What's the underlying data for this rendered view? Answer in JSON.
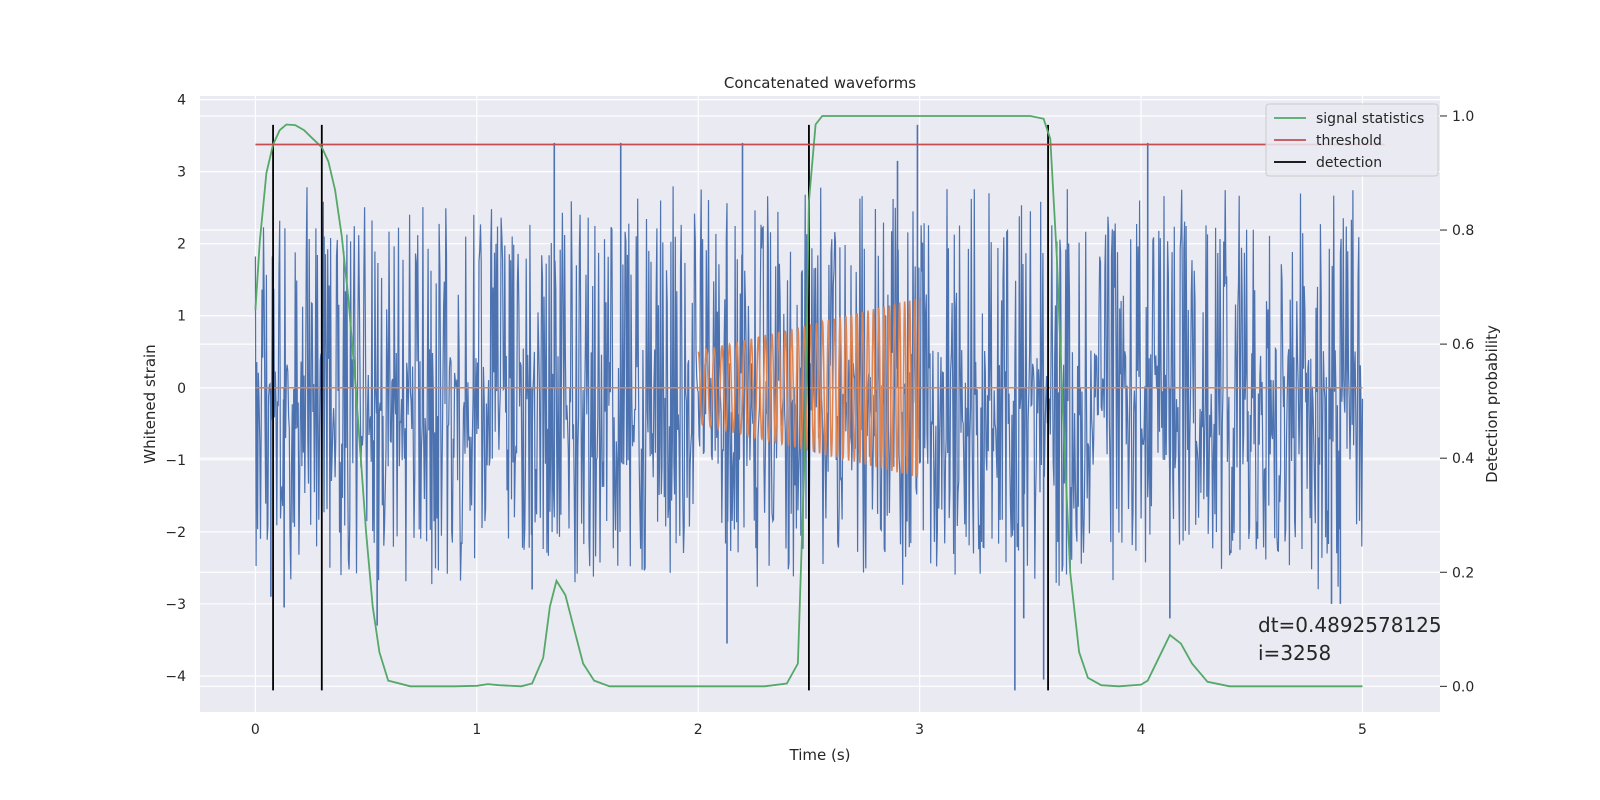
{
  "chart_data": {
    "type": "line",
    "title": "Concatenated waveforms",
    "xlabel": "Time (s)",
    "ylabel_left": "Whitened strain",
    "ylabel_right": "Detection probability",
    "xlim": [
      -0.25,
      5.35
    ],
    "ylim_left": [
      -4.5,
      4.05
    ],
    "ylim_right": [
      -0.045,
      1.035
    ],
    "x_ticks": [
      0,
      1,
      2,
      3,
      4,
      5
    ],
    "x_tick_labels": [
      "0",
      "1",
      "2",
      "3",
      "4",
      "5"
    ],
    "y_left_ticks": [
      4,
      3,
      2,
      1,
      0,
      -1,
      -2,
      -3,
      -4
    ],
    "y_left_tick_labels": [
      "4",
      "3",
      "2",
      "1",
      "0",
      "−1",
      "−2",
      "−3",
      "−4"
    ],
    "y_right_ticks": [
      1.0,
      0.8,
      0.6,
      0.4,
      0.2,
      0.0
    ],
    "y_right_tick_labels": [
      "1.0",
      "0.8",
      "0.6",
      "0.4",
      "0.2",
      "0.0"
    ],
    "grid": true,
    "legend_position": "top-right",
    "legend": [
      {
        "label": "signal statistics",
        "color": "#55a868"
      },
      {
        "label": "threshold",
        "color": "#c44e52"
      },
      {
        "label": "detection",
        "color": "#000000"
      }
    ],
    "annotation": [
      "dt=0.4892578125",
      " i=3258"
    ],
    "series": [
      {
        "kind": "noise",
        "axis": "left",
        "color": "#4c72b0",
        "x_range": [
          0,
          5
        ],
        "typical_range": [
          -1.1,
          0.55
        ],
        "peak_range": [
          -4.2,
          3.65
        ],
        "spikes": [
          {
            "x": 0.07,
            "y": -2.9
          },
          {
            "x": 0.13,
            "y": -3.05
          },
          {
            "x": 0.31,
            "y": 2.1
          },
          {
            "x": 0.55,
            "y": -3.3
          },
          {
            "x": 1.35,
            "y": 3.4
          },
          {
            "x": 1.25,
            "y": -2.8
          },
          {
            "x": 1.65,
            "y": 3.4
          },
          {
            "x": 2.2,
            "y": 3.4
          },
          {
            "x": 2.5,
            "y": 3.4
          },
          {
            "x": 2.13,
            "y": -3.55
          },
          {
            "x": 2.9,
            "y": 3.15
          },
          {
            "x": 2.99,
            "y": 3.65
          },
          {
            "x": 3.43,
            "y": -4.2
          },
          {
            "x": 3.56,
            "y": -4.05
          },
          {
            "x": 3.47,
            "y": -3.2
          },
          {
            "x": 4.03,
            "y": 3.4
          },
          {
            "x": 4.13,
            "y": -3.2
          },
          {
            "x": 4.86,
            "y": -3.0
          },
          {
            "x": 4.9,
            "y": -3.0
          }
        ]
      },
      {
        "kind": "chirp",
        "axis": "left",
        "color": "#dd8452",
        "x": [
          2.0,
          3.0
        ],
        "amplitude_start": 0.5,
        "amplitude_end": 1.25,
        "cycles": 36,
        "baseline": 0
      },
      {
        "name": "signal statistics",
        "axis": "right",
        "color": "#55a868",
        "x": [
          0,
          0.02,
          0.05,
          0.08,
          0.11,
          0.14,
          0.18,
          0.22,
          0.26,
          0.3,
          0.33,
          0.36,
          0.39,
          0.42,
          0.45,
          0.48,
          0.5,
          0.53,
          0.56,
          0.6,
          0.7,
          0.9,
          1.0,
          1.05,
          1.1,
          1.2,
          1.25,
          1.3,
          1.33,
          1.36,
          1.4,
          1.44,
          1.48,
          1.53,
          1.6,
          1.8,
          2.0,
          2.2,
          2.3,
          2.4,
          2.45,
          2.48,
          2.5,
          2.53,
          2.56,
          2.7,
          3.0,
          3.3,
          3.5,
          3.56,
          3.59,
          3.62,
          3.65,
          3.68,
          3.72,
          3.76,
          3.82,
          3.9,
          4.0,
          4.03,
          4.08,
          4.13,
          4.18,
          4.23,
          4.3,
          4.4,
          4.6,
          5.0
        ],
        "values": [
          0.66,
          0.78,
          0.9,
          0.95,
          0.975,
          0.985,
          0.984,
          0.975,
          0.96,
          0.945,
          0.92,
          0.87,
          0.79,
          0.68,
          0.54,
          0.38,
          0.27,
          0.14,
          0.06,
          0.01,
          0.0,
          0.0,
          0.001,
          0.004,
          0.002,
          0.0,
          0.005,
          0.05,
          0.14,
          0.185,
          0.16,
          0.1,
          0.04,
          0.01,
          0.0,
          0.0,
          0.0,
          0.0,
          0.0,
          0.005,
          0.04,
          0.4,
          0.85,
          0.985,
          1.0,
          1.0,
          1.0,
          1.0,
          1.0,
          0.995,
          0.96,
          0.75,
          0.45,
          0.2,
          0.06,
          0.015,
          0.002,
          0.0,
          0.003,
          0.01,
          0.05,
          0.09,
          0.075,
          0.04,
          0.008,
          0.0,
          0.0,
          0.0
        ]
      },
      {
        "name": "threshold",
        "axis": "right",
        "color": "#c44e52",
        "x": [
          0,
          5.1
        ],
        "values": [
          0.95,
          0.95
        ]
      }
    ],
    "detections": {
      "color": "#000000",
      "x": [
        0.08,
        0.3,
        2.5,
        3.58
      ],
      "ylim_left": [
        -4.2,
        3.65
      ]
    }
  }
}
